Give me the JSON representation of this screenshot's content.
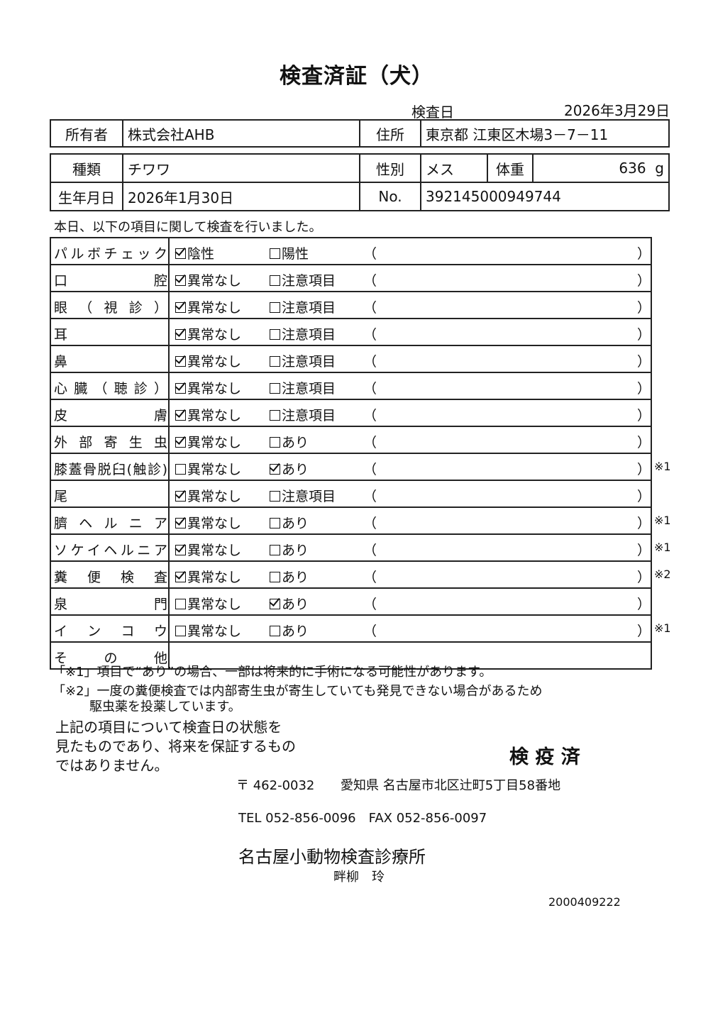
{
  "title": "検査済証（犬）",
  "exam_date_label": "検査日",
  "exam_date": "2026年3月29日",
  "owner": {
    "label": "所有者",
    "value": "株式会社AHB",
    "address_label": "住所",
    "address": "東京都 江東区木場3－7－11"
  },
  "pet": {
    "breed_label": "種類",
    "breed": "チワワ",
    "sex_label": "性別",
    "sex": "メス",
    "weight_label": "体重",
    "weight": "636",
    "weight_unit": "g",
    "birth_label": "生年月日",
    "birth": "2026年1月30日",
    "no_label": "No.",
    "no": "392145000949744"
  },
  "intro": "本日、以下の項目に関して検査を行いました。",
  "paren_open": "（",
  "paren_close": "）",
  "checks": [
    {
      "label": "パルボチェック",
      "opt1": "陰性",
      "opt1_checked": true,
      "opt2": "陽性",
      "opt2_checked": false,
      "note": ""
    },
    {
      "label": "口腔",
      "opt1": "異常なし",
      "opt1_checked": true,
      "opt2": "注意項目",
      "opt2_checked": false,
      "note": ""
    },
    {
      "label": "眼（視診）",
      "opt1": "異常なし",
      "opt1_checked": true,
      "opt2": "注意項目",
      "opt2_checked": false,
      "note": ""
    },
    {
      "label": "耳",
      "opt1": "異常なし",
      "opt1_checked": true,
      "opt2": "注意項目",
      "opt2_checked": false,
      "note": ""
    },
    {
      "label": "鼻",
      "opt1": "異常なし",
      "opt1_checked": true,
      "opt2": "注意項目",
      "opt2_checked": false,
      "note": ""
    },
    {
      "label": "心臓（聴診）",
      "opt1": "異常なし",
      "opt1_checked": true,
      "opt2": "注意項目",
      "opt2_checked": false,
      "note": ""
    },
    {
      "label": "皮膚",
      "opt1": "異常なし",
      "opt1_checked": true,
      "opt2": "注意項目",
      "opt2_checked": false,
      "note": ""
    },
    {
      "label": "外部寄生虫",
      "opt1": "異常なし",
      "opt1_checked": true,
      "opt2": "あり",
      "opt2_checked": false,
      "note": ""
    },
    {
      "label": "膝蓋骨脱臼(触診)",
      "opt1": "異常なし",
      "opt1_checked": false,
      "opt2": "あり",
      "opt2_checked": true,
      "note": "※1"
    },
    {
      "label": "尾",
      "opt1": "異常なし",
      "opt1_checked": true,
      "opt2": "注意項目",
      "opt2_checked": false,
      "note": ""
    },
    {
      "label": "臍ヘルニア",
      "opt1": "異常なし",
      "opt1_checked": true,
      "opt2": "あり",
      "opt2_checked": false,
      "note": "※1"
    },
    {
      "label": "ソケイヘルニア",
      "opt1": "異常なし",
      "opt1_checked": true,
      "opt2": "あり",
      "opt2_checked": false,
      "note": "※1"
    },
    {
      "label": "糞便検査",
      "opt1": "異常なし",
      "opt1_checked": true,
      "opt2": "あり",
      "opt2_checked": false,
      "note": "※2"
    },
    {
      "label": "泉門",
      "opt1": "異常なし",
      "opt1_checked": false,
      "opt2": "あり",
      "opt2_checked": true,
      "note": ""
    },
    {
      "label": "インコウ",
      "opt1": "異常なし",
      "opt1_checked": false,
      "opt2": "あり",
      "opt2_checked": false,
      "note": "※1"
    },
    {
      "label": "その他",
      "opt1": "",
      "opt2": "",
      "note": ""
    }
  ],
  "footnote1": "「※1」項目で“あり”の場合、一部は将来的に手術になる可能性があります。",
  "footnote2": "「※2」一度の糞便検査では内部寄生虫が寄生していても発見できない場合があるため",
  "footnote2b": "駆虫薬を投薬しています。",
  "disclaimer": [
    "上記の項目について検査日の状態を",
    "見たものであり、将来を保証するもの",
    "ではありません。"
  ],
  "stamp": "検 疫 済",
  "clinic": {
    "postal": "〒 462-0032",
    "address": "愛知県 名古屋市北区辻町5丁目58番地",
    "tel_fax": "TEL 052-856-0096　FAX 052-856-0097",
    "name": "名古屋小動物検査診療所",
    "person": "畔柳　玲"
  },
  "doc_number": "2000409222"
}
